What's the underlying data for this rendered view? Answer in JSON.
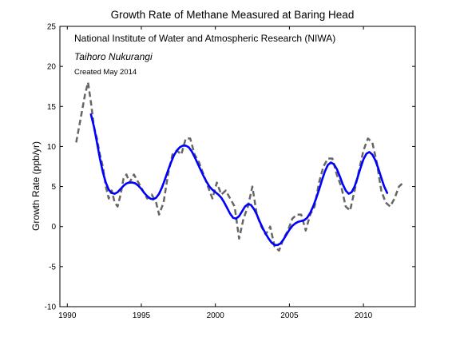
{
  "chart_data": {
    "type": "line",
    "title": "Growth Rate of Methane Measured at Baring Head",
    "xlabel": "",
    "ylabel": "Growth Rate (ppb/yr)",
    "xlim": [
      1989.5,
      2013.5
    ],
    "ylim": [
      -10,
      25
    ],
    "xticks": [
      1990,
      1995,
      2000,
      2005,
      2010
    ],
    "yticks": [
      -10,
      -5,
      0,
      5,
      10,
      15,
      20,
      25
    ],
    "grid": false,
    "annotations": [
      {
        "text": "National Institute of Water and Atmospheric Research (NIWA)",
        "style": "normal"
      },
      {
        "text": "Taihoro Nukurangi",
        "style": "italic"
      },
      {
        "text": "Created May 2014",
        "style": "small"
      }
    ],
    "series": [
      {
        "line_style": "dashed",
        "color": "#666666",
        "x": [
          1990.6,
          1990.9,
          1991.2,
          1991.4,
          1991.6,
          1991.8,
          1992.0,
          1992.2,
          1992.4,
          1992.6,
          1992.8,
          1993.0,
          1993.2,
          1993.4,
          1993.6,
          1993.8,
          1994.0,
          1994.2,
          1994.5,
          1994.8,
          1995.1,
          1995.4,
          1995.7,
          1996.0,
          1996.2,
          1996.5,
          1996.8,
          1997.1,
          1997.4,
          1997.7,
          1998.0,
          1998.3,
          1998.6,
          1998.9,
          1999.2,
          1999.5,
          1999.8,
          2000.1,
          2000.4,
          2000.7,
          2001.0,
          2001.3,
          2001.6,
          2001.9,
          2002.2,
          2002.5,
          2002.8,
          2003.1,
          2003.4,
          2003.7,
          2004.0,
          2004.3,
          2004.6,
          2004.9,
          2005.2,
          2005.5,
          2005.8,
          2006.1,
          2006.4,
          2006.7,
          2007.0,
          2007.3,
          2007.6,
          2007.9,
          2008.2,
          2008.5,
          2008.8,
          2009.1,
          2009.4,
          2009.7,
          2010.0,
          2010.3,
          2010.6,
          2010.9,
          2011.2,
          2011.5,
          2011.8,
          2012.1,
          2012.4,
          2012.7
        ],
        "y": [
          10.5,
          13.5,
          16.5,
          18.0,
          15.5,
          12.5,
          11.0,
          9.0,
          7.5,
          5.0,
          3.5,
          4.5,
          3.0,
          2.5,
          4.0,
          6.0,
          6.5,
          5.5,
          6.5,
          5.5,
          4.5,
          3.5,
          4.0,
          3.0,
          1.5,
          3.0,
          6.5,
          9.0,
          9.5,
          9.0,
          11.0,
          11.0,
          9.0,
          8.0,
          6.5,
          5.0,
          3.5,
          5.5,
          4.0,
          4.5,
          3.5,
          2.5,
          -1.5,
          1.0,
          2.5,
          5.0,
          1.5,
          0.0,
          -1.0,
          0.0,
          -2.5,
          -3.0,
          -1.5,
          -0.5,
          1.0,
          1.5,
          1.5,
          -0.5,
          1.5,
          2.5,
          5.5,
          7.5,
          8.5,
          8.5,
          6.5,
          5.0,
          2.5,
          2.0,
          4.5,
          7.0,
          9.5,
          11.0,
          10.5,
          8.0,
          4.5,
          3.0,
          2.5,
          3.5,
          5.0,
          5.5
        ]
      },
      {
        "line_style": "solid",
        "color": "#0000ff",
        "x": [
          1991.6,
          1991.8,
          1992.0,
          1992.2,
          1992.4,
          1992.6,
          1992.8,
          1993.0,
          1993.2,
          1993.4,
          1993.6,
          1993.8,
          1994.0,
          1994.2,
          1994.4,
          1994.6,
          1994.8,
          1995.0,
          1995.2,
          1995.4,
          1995.6,
          1995.8,
          1996.0,
          1996.2,
          1996.4,
          1996.6,
          1996.8,
          1997.0,
          1997.2,
          1997.4,
          1997.6,
          1997.8,
          1998.0,
          1998.2,
          1998.4,
          1998.6,
          1998.8,
          1999.0,
          1999.2,
          1999.4,
          1999.6,
          1999.8,
          2000.0,
          2000.2,
          2000.4,
          2000.6,
          2000.8,
          2001.0,
          2001.2,
          2001.4,
          2001.6,
          2001.8,
          2002.0,
          2002.2,
          2002.4,
          2002.6,
          2002.8,
          2003.0,
          2003.2,
          2003.4,
          2003.6,
          2003.8,
          2004.0,
          2004.2,
          2004.4,
          2004.6,
          2004.8,
          2005.0,
          2005.2,
          2005.4,
          2005.6,
          2005.8,
          2006.0,
          2006.2,
          2006.4,
          2006.6,
          2006.8,
          2007.0,
          2007.2,
          2007.4,
          2007.6,
          2007.8,
          2008.0,
          2008.2,
          2008.4,
          2008.6,
          2008.8,
          2009.0,
          2009.2,
          2009.4,
          2009.6,
          2009.8,
          2010.0,
          2010.2,
          2010.4,
          2010.6,
          2010.8,
          2011.0,
          2011.2,
          2011.4,
          2011.6
        ],
        "y": [
          14.0,
          12.5,
          10.5,
          8.5,
          6.8,
          5.5,
          4.6,
          4.2,
          4.1,
          4.3,
          4.7,
          5.1,
          5.4,
          5.5,
          5.5,
          5.4,
          5.1,
          4.7,
          4.2,
          3.8,
          3.5,
          3.4,
          3.6,
          4.1,
          4.9,
          5.9,
          7.0,
          8.0,
          8.9,
          9.5,
          9.9,
          10.1,
          10.1,
          9.9,
          9.4,
          8.7,
          7.9,
          7.1,
          6.3,
          5.6,
          5.0,
          4.6,
          4.3,
          4.0,
          3.6,
          3.0,
          2.3,
          1.6,
          1.1,
          1.0,
          1.3,
          1.9,
          2.5,
          2.8,
          2.7,
          2.2,
          1.5,
          0.6,
          -0.2,
          -0.9,
          -1.5,
          -2.0,
          -2.3,
          -2.3,
          -2.1,
          -1.6,
          -1.0,
          -0.4,
          0.1,
          0.4,
          0.6,
          0.7,
          0.8,
          1.1,
          1.7,
          2.5,
          3.5,
          4.6,
          5.8,
          6.9,
          7.7,
          8.0,
          7.8,
          7.2,
          6.3,
          5.3,
          4.5,
          4.1,
          4.3,
          5.0,
          6.1,
          7.3,
          8.4,
          9.1,
          9.3,
          9.0,
          8.3,
          7.3,
          6.1,
          5.0,
          4.2
        ]
      }
    ]
  }
}
